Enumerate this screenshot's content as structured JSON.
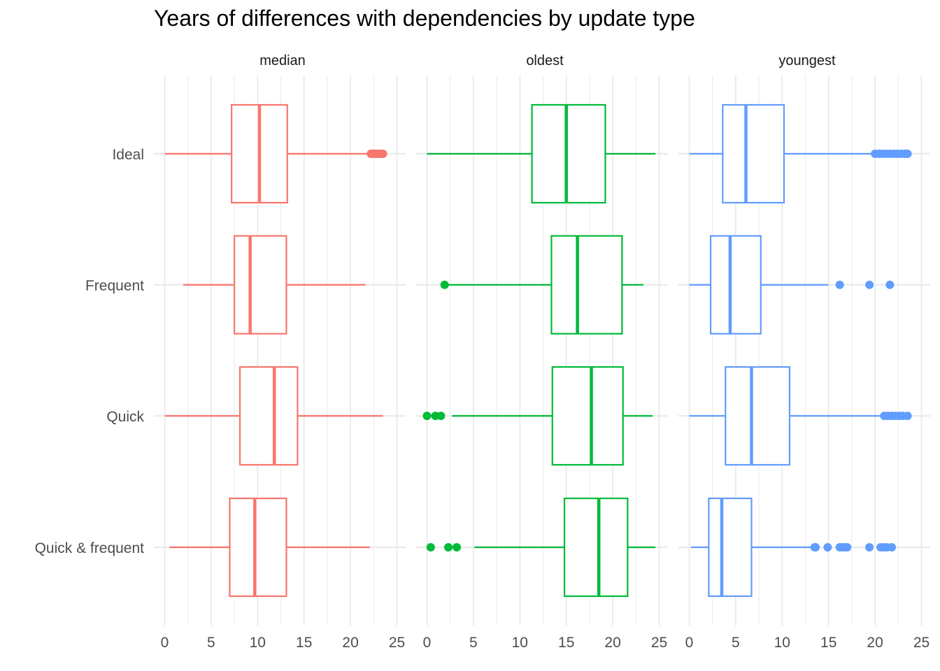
{
  "chart_data": {
    "type": "boxplot",
    "title": "Years of differences with dependencies by update type",
    "xlabel": "",
    "ylabel": "",
    "xlim": [
      0,
      25
    ],
    "x_ticks": [
      "0",
      "5",
      "10",
      "15",
      "20",
      "25"
    ],
    "grid": true,
    "legend": "none",
    "categories": [
      "Ideal",
      "Frequent",
      "Quick",
      "Quick & frequent"
    ],
    "facets": [
      {
        "name": "median",
        "color": "#F8766D",
        "boxes": [
          {
            "category": "Ideal",
            "whisker_low": 0,
            "q1": 7.2,
            "median": 10.2,
            "q3": 13.2,
            "whisker_high": 22.2,
            "outliers": [
              22.2,
              22.4,
              22.6,
              22.8,
              23.0,
              23.2,
              23.4,
              23.5
            ]
          },
          {
            "category": "Frequent",
            "whisker_low": 2.0,
            "q1": 7.5,
            "median": 9.2,
            "q3": 13.1,
            "whisker_high": 21.6,
            "outliers": []
          },
          {
            "category": "Quick",
            "whisker_low": 0,
            "q1": 8.1,
            "median": 11.8,
            "q3": 14.3,
            "whisker_high": 23.5,
            "outliers": []
          },
          {
            "category": "Quick & frequent",
            "whisker_low": 0.5,
            "q1": 7.0,
            "median": 9.7,
            "q3": 13.1,
            "whisker_high": 22.1,
            "outliers": []
          }
        ]
      },
      {
        "name": "oldest",
        "color": "#00BA38",
        "boxes": [
          {
            "category": "Ideal",
            "whisker_low": 0,
            "q1": 11.3,
            "median": 15.0,
            "q3": 19.2,
            "whisker_high": 24.6,
            "outliers": []
          },
          {
            "category": "Frequent",
            "whisker_low": 1.9,
            "q1": 13.4,
            "median": 16.2,
            "q3": 21.0,
            "whisker_high": 23.3,
            "outliers": [
              1.9
            ]
          },
          {
            "category": "Quick",
            "whisker_low": 2.7,
            "q1": 13.5,
            "median": 17.7,
            "q3": 21.1,
            "whisker_high": 24.3,
            "outliers": [
              0,
              0.9,
              1.5
            ]
          },
          {
            "category": "Quick & frequent",
            "whisker_low": 5.1,
            "q1": 14.8,
            "median": 18.5,
            "q3": 21.6,
            "whisker_high": 24.6,
            "outliers": [
              0.4,
              2.3,
              3.2
            ]
          }
        ]
      },
      {
        "name": "youngest",
        "color": "#619CFF",
        "boxes": [
          {
            "category": "Ideal",
            "whisker_low": 0,
            "q1": 3.6,
            "median": 6.1,
            "q3": 10.2,
            "whisker_high": 20.0,
            "outliers": [
              20.0,
              20.4,
              20.8,
              21.2,
              21.6,
              22.0,
              22.4,
              22.8,
              23.2,
              23.5
            ]
          },
          {
            "category": "Frequent",
            "whisker_low": 0,
            "q1": 2.3,
            "median": 4.4,
            "q3": 7.7,
            "whisker_high": 15.0,
            "outliers": [
              16.2,
              19.4,
              21.6
            ]
          },
          {
            "category": "Quick",
            "whisker_low": 0,
            "q1": 3.9,
            "median": 6.7,
            "q3": 10.8,
            "whisker_high": 21.0,
            "outliers": [
              21.0,
              21.4,
              21.8,
              22.2,
              22.6,
              23.0,
              23.5
            ]
          },
          {
            "category": "Quick & frequent",
            "whisker_low": 0.2,
            "q1": 2.1,
            "median": 3.5,
            "q3": 6.7,
            "whisker_high": 13.5,
            "outliers": [
              13.5,
              13.6,
              14.9,
              16.2,
              16.5,
              16.8,
              17.0,
              19.4,
              20.6,
              21.0,
              21.3,
              21.8
            ]
          }
        ]
      }
    ]
  }
}
